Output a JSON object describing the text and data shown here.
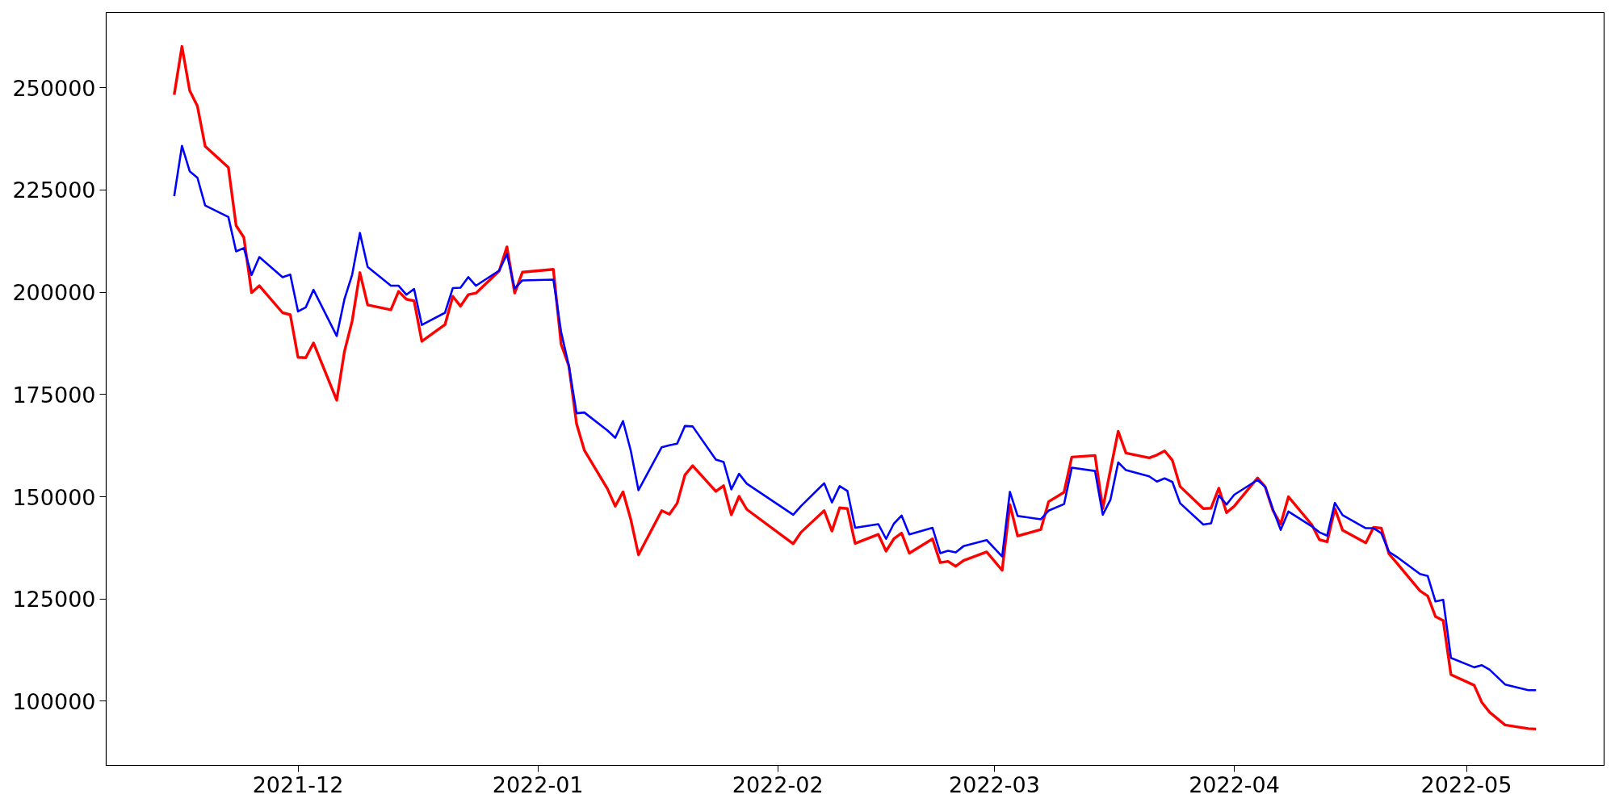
{
  "chart_data": {
    "type": "line",
    "x": [
      "2021-11-15",
      "2021-11-16",
      "2021-11-17",
      "2021-11-18",
      "2021-11-19",
      "2021-11-22",
      "2021-11-23",
      "2021-11-24",
      "2021-11-25",
      "2021-11-26",
      "2021-11-29",
      "2021-11-30",
      "2021-12-01",
      "2021-12-02",
      "2021-12-03",
      "2021-12-06",
      "2021-12-07",
      "2021-12-08",
      "2021-12-09",
      "2021-12-10",
      "2021-12-13",
      "2021-12-14",
      "2021-12-15",
      "2021-12-16",
      "2021-12-17",
      "2021-12-20",
      "2021-12-21",
      "2021-12-22",
      "2021-12-23",
      "2021-12-24",
      "2021-12-27",
      "2021-12-28",
      "2021-12-29",
      "2021-12-30",
      "2022-01-03",
      "2022-01-04",
      "2022-01-05",
      "2022-01-06",
      "2022-01-07",
      "2022-01-10",
      "2022-01-11",
      "2022-01-12",
      "2022-01-13",
      "2022-01-14",
      "2022-01-17",
      "2022-01-18",
      "2022-01-19",
      "2022-01-20",
      "2022-01-21",
      "2022-01-24",
      "2022-01-25",
      "2022-01-26",
      "2022-01-27",
      "2022-01-28",
      "2022-02-03",
      "2022-02-04",
      "2022-02-07",
      "2022-02-08",
      "2022-02-09",
      "2022-02-10",
      "2022-02-11",
      "2022-02-14",
      "2022-02-15",
      "2022-02-16",
      "2022-02-17",
      "2022-02-18",
      "2022-02-21",
      "2022-02-22",
      "2022-02-23",
      "2022-02-24",
      "2022-02-25",
      "2022-02-28",
      "2022-03-02",
      "2022-03-03",
      "2022-03-04",
      "2022-03-07",
      "2022-03-08",
      "2022-03-10",
      "2022-03-11",
      "2022-03-14",
      "2022-03-15",
      "2022-03-16",
      "2022-03-17",
      "2022-03-18",
      "2022-03-21",
      "2022-03-22",
      "2022-03-23",
      "2022-03-24",
      "2022-03-25",
      "2022-03-28",
      "2022-03-29",
      "2022-03-30",
      "2022-03-31",
      "2022-04-01",
      "2022-04-04",
      "2022-04-05",
      "2022-04-06",
      "2022-04-07",
      "2022-04-08",
      "2022-04-11",
      "2022-04-12",
      "2022-04-13",
      "2022-04-14",
      "2022-04-15",
      "2022-04-18",
      "2022-04-19",
      "2022-04-20",
      "2022-04-21",
      "2022-04-22",
      "2022-04-25",
      "2022-04-26",
      "2022-04-27",
      "2022-04-28",
      "2022-04-29",
      "2022-05-02",
      "2022-05-03",
      "2022-05-04",
      "2022-05-06",
      "2022-05-09",
      "2022-05-10"
    ],
    "series": [
      {
        "color": "#ff0000",
        "values": [
          248300,
          260100,
          249300,
          245500,
          235700,
          230500,
          216300,
          213400,
          199900,
          201600,
          195000,
          194500,
          184100,
          184000,
          187600,
          173600,
          185500,
          193000,
          204800,
          196900,
          195700,
          200200,
          198300,
          197900,
          188000,
          192100,
          199000,
          196600,
          199400,
          199800,
          205200,
          211100,
          199800,
          204900,
          205600,
          187300,
          182000,
          167800,
          161400,
          151900,
          147700,
          151200,
          144500,
          135800,
          146600,
          145700,
          148400,
          155300,
          157600,
          151300,
          152700,
          145600,
          150100,
          146900,
          138500,
          141300,
          146600,
          141600,
          147300,
          147100,
          138600,
          140800,
          136700,
          139700,
          141100,
          136200,
          139700,
          133900,
          134200,
          133000,
          134400,
          136500,
          132000,
          148100,
          140400,
          142000,
          148800,
          151100,
          159700,
          160100,
          147100,
          156600,
          166000,
          160700,
          159500,
          160200,
          161200,
          158900,
          152500,
          147100,
          147200,
          152100,
          146100,
          147700,
          154600,
          152400,
          146600,
          143300,
          150000,
          143200,
          139500,
          139000,
          147100,
          141800,
          138700,
          142500,
          142300,
          136000,
          133800,
          127000,
          125700,
          120700,
          119700,
          106500,
          103900,
          99700,
          97300,
          94200,
          93300,
          93200
        ]
      },
      {
        "color": "#0000ff",
        "values": [
          223500,
          235800,
          229600,
          228000,
          221200,
          218400,
          210000,
          210800,
          204200,
          208600,
          203700,
          204300,
          195300,
          196300,
          200600,
          189300,
          198300,
          204300,
          214500,
          206200,
          201600,
          201600,
          199400,
          200800,
          192000,
          195000,
          201000,
          201100,
          203700,
          201600,
          205300,
          209300,
          200900,
          202900,
          203100,
          190300,
          182000,
          170400,
          170600,
          166200,
          164400,
          168500,
          161300,
          151600,
          162100,
          162600,
          163000,
          167300,
          167200,
          159100,
          158500,
          151800,
          155600,
          153200,
          145600,
          147700,
          153300,
          148600,
          152600,
          151400,
          142400,
          143300,
          139700,
          143400,
          145400,
          140800,
          142400,
          136200,
          136800,
          136400,
          137900,
          139400,
          135400,
          151200,
          145300,
          144500,
          146600,
          148200,
          157100,
          156300,
          145600,
          149300,
          158400,
          156500,
          155000,
          153700,
          154500,
          153600,
          148400,
          143200,
          143500,
          150300,
          148100,
          150500,
          154100,
          152400,
          146900,
          141900,
          146400,
          142800,
          141300,
          140500,
          148500,
          145500,
          142300,
          142300,
          141100,
          136500,
          135300,
          131100,
          130600,
          124400,
          124800,
          110600,
          108300,
          108800,
          107700,
          104100,
          102700,
          102700
        ]
      }
    ],
    "xlim": [
      "2021-11-06T05:00",
      "2022-05-18T19:00"
    ],
    "xticks": [
      "2021-12",
      "2022-01",
      "2022-02",
      "2022-03",
      "2022-04",
      "2022-05"
    ],
    "ylim": [
      84300,
      268400
    ],
    "yticks": [
      100000,
      125000,
      150000,
      175000,
      200000,
      225000,
      250000
    ],
    "grid": false,
    "marker": "none",
    "line_style": "solid"
  }
}
